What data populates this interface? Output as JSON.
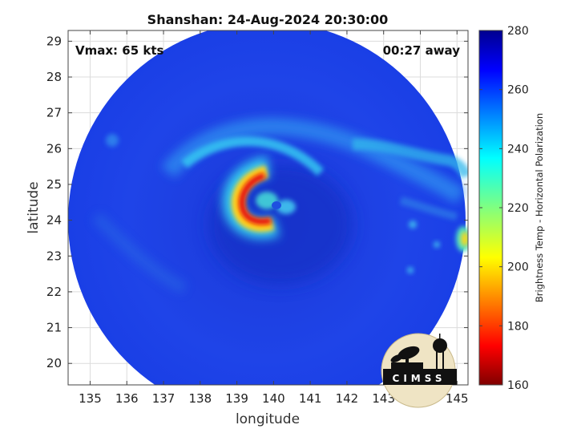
{
  "chart_data": {
    "type": "heatmap",
    "title": "Shanshan: 24-Aug-2024 20:30:00",
    "xlabel": "longitude",
    "ylabel": "latitude",
    "xlim": [
      134.4,
      145.3
    ],
    "ylim": [
      19.4,
      29.3
    ],
    "x_ticks": [
      "135",
      "136",
      "137",
      "138",
      "139",
      "140",
      "141",
      "142",
      "143",
      "144",
      "145"
    ],
    "y_ticks": [
      "20",
      "21",
      "22",
      "23",
      "24",
      "25",
      "26",
      "27",
      "28",
      "29"
    ],
    "grid": true,
    "annotations": {
      "left": "Vmax: 65 kts",
      "right": "00:27 away"
    },
    "colorbar": {
      "label": "Brightness Temp - Horizontal Polarization",
      "range": [
        160,
        280
      ],
      "ticks": [
        "160",
        "180",
        "200",
        "220",
        "240",
        "260",
        "280"
      ],
      "colormap": "jet"
    },
    "swath_center": [
      139.95,
      24.1
    ],
    "storm_center": [
      139.7,
      24.4
    ],
    "features": [
      {
        "name": "eyewall",
        "lon": 139.05,
        "lat": 24.6,
        "tb": 172
      },
      {
        "name": "inner band",
        "lon": 139.6,
        "lat": 24.2,
        "tb": 205
      },
      {
        "name": "eastern cloud cell",
        "lon": 140.3,
        "lat": 24.4,
        "tb": 232
      },
      {
        "name": "edge cell",
        "lon": 145.15,
        "lat": 23.4,
        "tb": 210
      },
      {
        "name": "northern rainband",
        "lon": 139.0,
        "lat": 26.2,
        "tb": 246
      },
      {
        "name": "north-east rainband",
        "lon": 143.5,
        "lat": 25.8,
        "tb": 248
      }
    ]
  },
  "logo": {
    "text": "CIMSS"
  },
  "colors": {
    "swath_background": "#1e3be0",
    "axes": "#444444",
    "grid": "#d9d9d9"
  }
}
